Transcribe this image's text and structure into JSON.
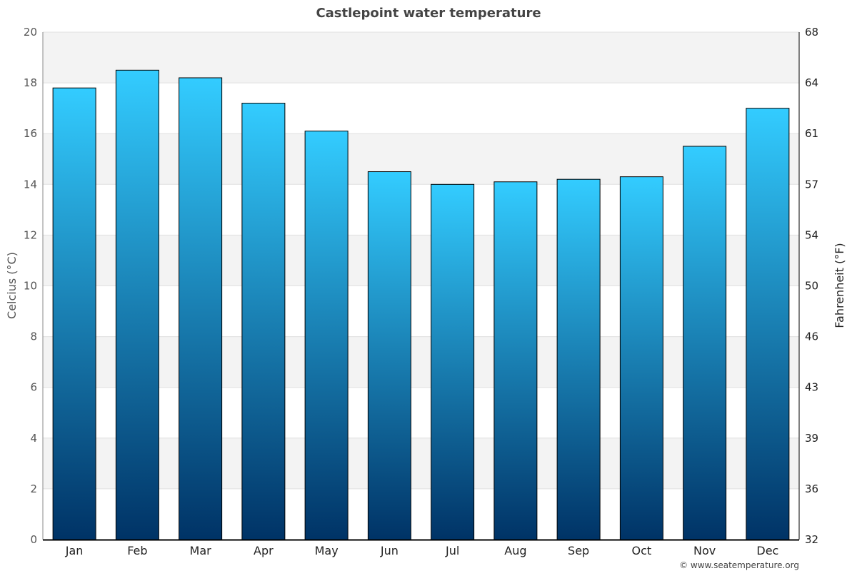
{
  "chart_data": {
    "type": "bar",
    "title": "Castlepoint water temperature",
    "ylabel": "Celcius (°C)",
    "y2label": "Fahrenheit (°F)",
    "ylim": [
      0,
      20
    ],
    "yticks": [
      0,
      2,
      4,
      6,
      8,
      10,
      12,
      14,
      16,
      18,
      20
    ],
    "y2ticks": [
      "32",
      "36",
      "39",
      "43",
      "46",
      "50",
      "54",
      "57",
      "61",
      "64",
      "68"
    ],
    "categories": [
      "Jan",
      "Feb",
      "Mar",
      "Apr",
      "May",
      "Jun",
      "Jul",
      "Aug",
      "Sep",
      "Oct",
      "Nov",
      "Dec"
    ],
    "values": [
      17.8,
      18.5,
      18.2,
      17.2,
      16.1,
      14.5,
      14.0,
      14.1,
      14.2,
      14.3,
      15.5,
      17.0
    ],
    "grid": true,
    "colors": {
      "bar_top": "#33ccff",
      "bar_bottom": "#003366",
      "band": "#f3f3f3"
    }
  },
  "credit": "© www.seatemperature.org"
}
